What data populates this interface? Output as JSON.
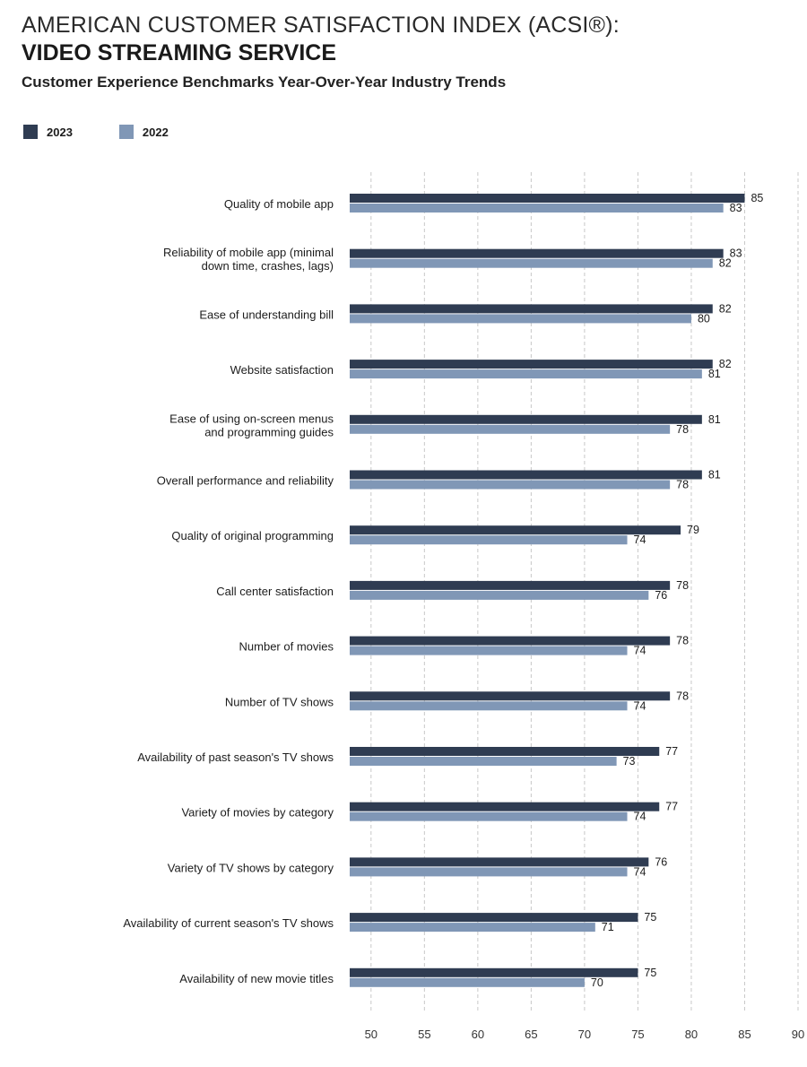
{
  "header": {
    "title_line1": "AMERICAN CUSTOMER SATISFACTION INDEX (ACSI®):",
    "title_line2": "VIDEO STREAMING SERVICE",
    "subtitle": "Customer Experience Benchmarks Year-Over-Year Industry Trends"
  },
  "legend": [
    {
      "label": "2023",
      "color": "#2f3c52"
    },
    {
      "label": "2022",
      "color": "#8097b6"
    }
  ],
  "chart_data": {
    "type": "bar",
    "orientation": "horizontal",
    "categories": [
      [
        "Quality of mobile app"
      ],
      [
        "Reliability of mobile app (minimal",
        "down time, crashes, lags)"
      ],
      [
        "Ease of understanding bill"
      ],
      [
        "Website satisfaction"
      ],
      [
        "Ease of using on-screen menus",
        "and programming guides"
      ],
      [
        "Overall performance and reliability"
      ],
      [
        "Quality of original programming"
      ],
      [
        "Call center satisfaction"
      ],
      [
        "Number of movies"
      ],
      [
        "Number of TV shows"
      ],
      [
        "Availability of past season's TV shows"
      ],
      [
        "Variety of movies by category"
      ],
      [
        "Variety of TV shows by category"
      ],
      [
        "Availability of current season's TV shows"
      ],
      [
        "Availability of new movie titles"
      ]
    ],
    "series": [
      {
        "name": "2023",
        "color": "#2f3c52",
        "values": [
          85,
          83,
          82,
          82,
          81,
          81,
          79,
          78,
          78,
          78,
          77,
          77,
          76,
          75,
          75
        ]
      },
      {
        "name": "2022",
        "color": "#8097b6",
        "values": [
          83,
          82,
          80,
          81,
          78,
          78,
          74,
          76,
          74,
          74,
          73,
          74,
          74,
          71,
          70
        ]
      }
    ],
    "xlim": [
      48,
      90
    ],
    "xticks": [
      50,
      55,
      60,
      65,
      70,
      75,
      80,
      85,
      90
    ],
    "grid": true,
    "legend_position": "top-left"
  }
}
